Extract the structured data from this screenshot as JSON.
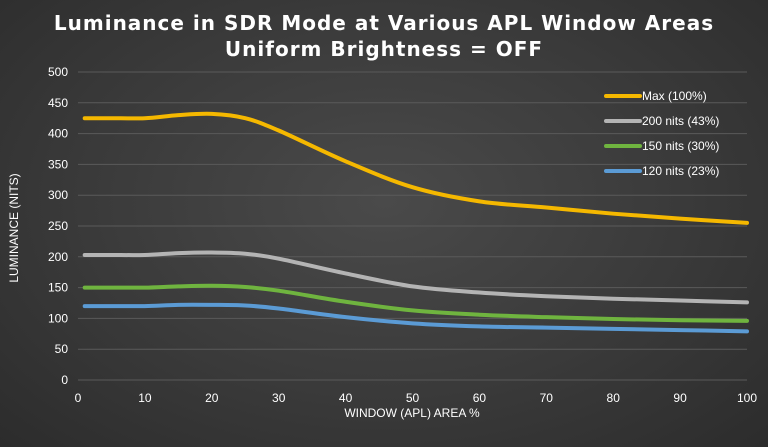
{
  "chart_data": {
    "type": "line",
    "title_lines": [
      "Luminance in SDR Mode at Various APL Window Areas",
      "Uniform Brightness = OFF"
    ],
    "xlabel": "WINDOW (APL) AREA %",
    "ylabel": "LUMINANCE (NITS)",
    "xlim": [
      0,
      100
    ],
    "ylim": [
      0,
      500
    ],
    "xticks": [
      0,
      10,
      20,
      30,
      40,
      50,
      60,
      70,
      80,
      90,
      100
    ],
    "yticks": [
      0,
      50,
      100,
      150,
      200,
      250,
      300,
      350,
      400,
      450,
      500
    ],
    "grid": true,
    "legend_position": "top-right",
    "x": [
      1,
      2,
      5,
      10,
      15,
      20,
      25,
      30,
      40,
      50,
      60,
      70,
      80,
      90,
      100
    ],
    "series": [
      {
        "name": "Max (100%)",
        "color": "#f5b800",
        "values": [
          425,
          425,
          425,
          425,
          430,
          432,
          425,
          405,
          355,
          313,
          290,
          280,
          270,
          262,
          255
        ]
      },
      {
        "name": "200 nits (43%)",
        "color": "#b4b4b4",
        "values": [
          203,
          203,
          203,
          203,
          206,
          207,
          205,
          197,
          173,
          152,
          142,
          136,
          132,
          129,
          126
        ]
      },
      {
        "name": "150 nits (30%)",
        "color": "#6fb43f",
        "values": [
          150,
          150,
          150,
          150,
          152,
          153,
          151,
          145,
          127,
          113,
          106,
          102,
          99,
          97,
          96
        ]
      },
      {
        "name": "120 nits (23%)",
        "color": "#5b9bd5",
        "values": [
          120,
          120,
          120,
          120,
          122,
          122,
          121,
          116,
          102,
          92,
          87,
          85,
          83,
          81,
          79
        ]
      }
    ]
  }
}
